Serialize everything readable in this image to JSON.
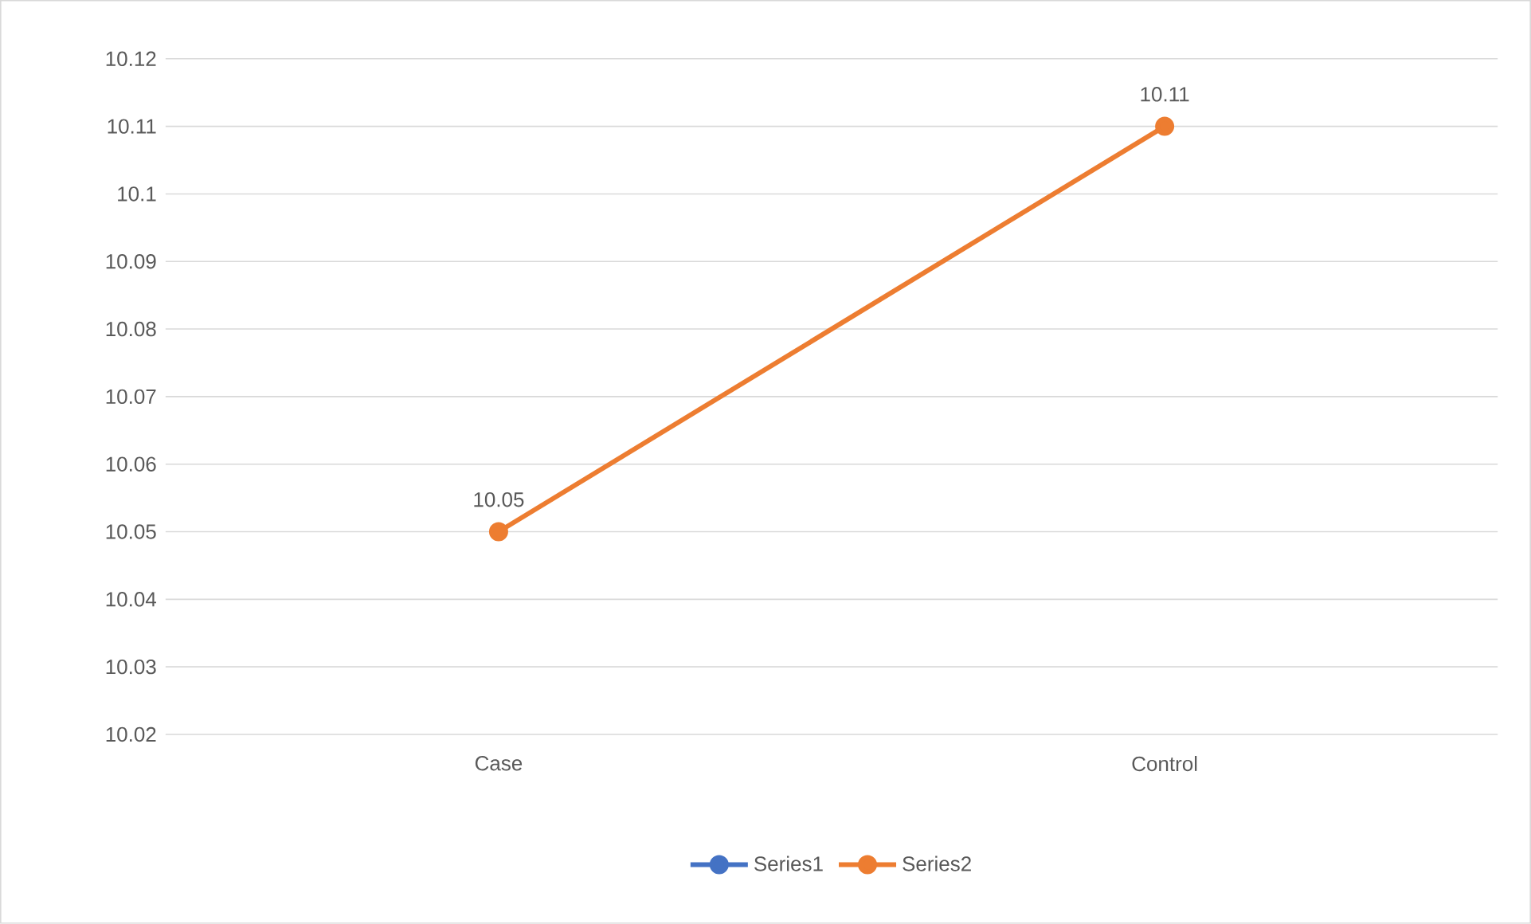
{
  "chart_data": {
    "type": "line",
    "categories": [
      "Case",
      "Control"
    ],
    "series": [
      {
        "name": "Series1",
        "color": "#4472c4",
        "values": [
          null,
          null
        ]
      },
      {
        "name": "Series2",
        "color": "#ed7d31",
        "values": [
          10.05,
          10.11
        ]
      }
    ],
    "ylim": [
      10.02,
      10.12
    ],
    "yticks": [
      10.02,
      10.03,
      10.04,
      10.05,
      10.06,
      10.07,
      10.08,
      10.09,
      10.1,
      10.11,
      10.12
    ],
    "grid": "y",
    "legend": "bottom",
    "marker": "circle",
    "line_style": "solid",
    "data_labels": true
  }
}
